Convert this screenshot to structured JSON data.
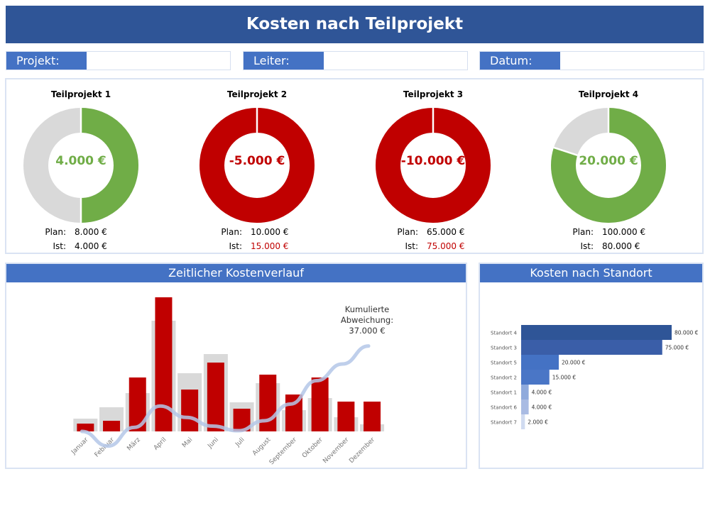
{
  "header": {
    "title": "Kosten nach Teilprojekt"
  },
  "info": [
    {
      "label": "Projekt:",
      "value": ""
    },
    {
      "label": "Leiter:",
      "value": ""
    },
    {
      "label": "Datum:",
      "value": ""
    }
  ],
  "colors": {
    "header": "#2f5597",
    "accent": "#4472c4",
    "positive": "#70ad47",
    "negative": "#c00000",
    "rest": "#d9d9d9"
  },
  "subprojects": [
    {
      "title": "Teilprojekt 1",
      "value": "4.000 €",
      "status": "positive",
      "fill": 0.5,
      "plan_label": "Plan:",
      "plan": "8.000 €",
      "actual_label": "Ist:",
      "actual": "4.000 €",
      "over": false
    },
    {
      "title": "Teilprojekt 2",
      "value": "-5.000 €",
      "status": "negative",
      "fill": 1.0,
      "plan_label": "Plan:",
      "plan": "10.000 €",
      "actual_label": "Ist:",
      "actual": "15.000 €",
      "over": true
    },
    {
      "title": "Teilprojekt 3",
      "value": "-10.000 €",
      "status": "negative",
      "fill": 1.0,
      "plan_label": "Plan:",
      "plan": "65.000 €",
      "actual_label": "Ist:",
      "actual": "75.000 €",
      "over": true
    },
    {
      "title": "Teilprojekt 4",
      "value": "20.000 €",
      "status": "positive",
      "fill": 0.8,
      "plan_label": "Plan:",
      "plan": "100.000 €",
      "actual_label": "Ist:",
      "actual": "80.000 €",
      "over": false
    }
  ],
  "chart_data": [
    {
      "type": "bar",
      "title": "Zeitlicher Kostenverlauf",
      "categories": [
        "Januar",
        "Februar",
        "März",
        "April",
        "Mai",
        "Juni",
        "Juli",
        "August",
        "September",
        "Oktober",
        "November",
        "Dezember"
      ],
      "series": [
        {
          "role": "plan",
          "color": "#d9d9d9",
          "values": [
            18,
            34,
            54,
            156,
            82,
            109,
            41,
            68,
            30,
            47,
            20,
            10
          ]
        },
        {
          "role": "actual",
          "color": "#c00000",
          "values": [
            11,
            15,
            76,
            189,
            59,
            97,
            32,
            80,
            52,
            76,
            42,
            42
          ]
        },
        {
          "role": "cumulative-deviation",
          "type": "line",
          "color": "#b4c7e7",
          "values": [
            0,
            -22,
            6,
            38,
            21,
            8,
            1,
            16,
            41,
            76,
            101,
            128
          ]
        }
      ],
      "annotation": {
        "lines": [
          "Kumulierte",
          "Abweichung:",
          "37.000 €"
        ]
      }
    },
    {
      "type": "bar",
      "orientation": "horizontal",
      "title": "Kosten nach Standort",
      "categories": [
        "Standort 4",
        "Standort 3",
        "Standort 5",
        "Standort 2",
        "Standort 1",
        "Standort 6",
        "Standort 7"
      ],
      "values": [
        80000,
        75000,
        20000,
        15000,
        4000,
        4000,
        2000
      ],
      "labels": [
        "80.000 €",
        "75.000 €",
        "20.000 €",
        "15.000 €",
        "4.000 €",
        "4.000 €",
        "2.000 €"
      ],
      "colors": [
        "#2f5597",
        "#3a5ea8",
        "#4472c4",
        "#4a76c6",
        "#8faadc",
        "#a9bbe3",
        "#d0dbf0"
      ]
    }
  ]
}
